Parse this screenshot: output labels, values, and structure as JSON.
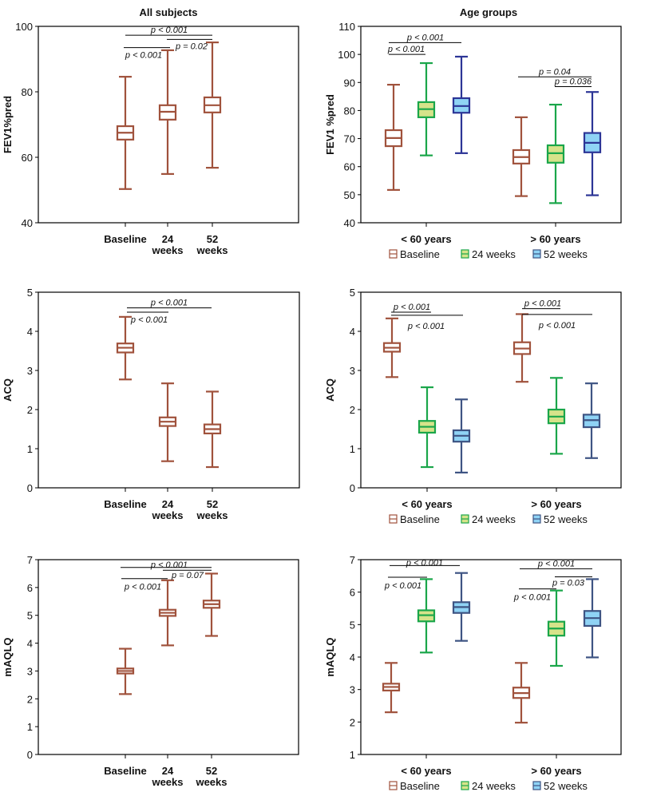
{
  "chart_data": [
    {
      "id": "fev1-all",
      "type": "boxplot",
      "title": "All subjects",
      "ylabel": "FEV1%pred",
      "ylim": [
        40,
        100
      ],
      "yticks": [
        40,
        60,
        80,
        100
      ],
      "categories": [
        "Baseline",
        "24\nweeks",
        "52\nweeks"
      ],
      "groups": [
        {
          "label": "",
          "boxes": [
            {
              "series": "Baseline",
              "color": "brown",
              "min": 50.3,
              "q1": 65.4,
              "median": 67.5,
              "q3": 69.5,
              "max": 84.6
            },
            {
              "series": "24 weeks",
              "color": "brown",
              "min": 54.9,
              "q1": 71.5,
              "median": 73.9,
              "q3": 75.9,
              "max": 92.7
            },
            {
              "series": "52 weeks",
              "color": "brown",
              "min": 56.8,
              "q1": 73.7,
              "median": 75.9,
              "q3": 78.3,
              "max": 95.1
            }
          ]
        }
      ],
      "annotations": [
        {
          "from": 0,
          "to": 2,
          "label": "p < 0.001"
        },
        {
          "from": 0,
          "to": 1,
          "label": "p < 0.001"
        },
        {
          "from": 1,
          "to": 2,
          "label": "p = 0.02"
        }
      ]
    },
    {
      "id": "fev1-age",
      "type": "boxplot",
      "title": "Age groups",
      "ylabel": "FEV1 %pred",
      "ylim": [
        40,
        110
      ],
      "yticks": [
        40,
        50,
        60,
        70,
        80,
        90,
        100,
        110
      ],
      "categories": [
        "< 60 years",
        "> 60 years"
      ],
      "groups": [
        {
          "label": "< 60 years",
          "boxes": [
            {
              "series": "Baseline",
              "color": "brown",
              "min": 51.7,
              "q1": 67.3,
              "median": 70.2,
              "q3": 73.0,
              "max": 89.2
            },
            {
              "series": "24 weeks",
              "color": "green",
              "min": 64.0,
              "q1": 77.6,
              "median": 80.5,
              "q3": 83.0,
              "max": 96.9
            },
            {
              "series": "52 weeks",
              "color": "navy",
              "min": 64.8,
              "q1": 79.2,
              "median": 81.6,
              "q3": 84.4,
              "max": 99.2
            }
          ]
        },
        {
          "label": "> 60 years",
          "boxes": [
            {
              "series": "Baseline",
              "color": "brown",
              "min": 49.5,
              "q1": 61.1,
              "median": 63.4,
              "q3": 65.9,
              "max": 77.6
            },
            {
              "series": "24 weeks",
              "color": "green",
              "min": 47.0,
              "q1": 61.4,
              "median": 64.8,
              "q3": 67.6,
              "max": 82.1
            },
            {
              "series": "52 weeks",
              "color": "navy",
              "min": 49.8,
              "q1": 65.1,
              "median": 68.5,
              "q3": 72.0,
              "max": 86.6
            }
          ]
        }
      ],
      "annotations": [
        {
          "group": 0,
          "from": 0,
          "to": 2,
          "label": "p < 0.001"
        },
        {
          "group": 0,
          "from": 0,
          "to": 1,
          "label": "p < 0.001"
        },
        {
          "group": 1,
          "from": 0,
          "to": 2,
          "label": "p = 0.04"
        },
        {
          "group": 1,
          "from": 1,
          "to": 2,
          "label": "p = 0.036"
        }
      ],
      "legend": [
        "Baseline",
        "24 weeks",
        "52 weeks"
      ]
    },
    {
      "id": "acq-all",
      "type": "boxplot",
      "title": "",
      "ylabel": "ACQ",
      "ylim": [
        0,
        5
      ],
      "yticks": [
        0,
        1,
        2,
        3,
        4,
        5
      ],
      "categories": [
        "Baseline",
        "24\nweeks",
        "52\nweeks"
      ],
      "groups": [
        {
          "label": "",
          "boxes": [
            {
              "series": "Baseline",
              "color": "brown",
              "min": 2.77,
              "q1": 3.46,
              "median": 3.58,
              "q3": 3.69,
              "max": 4.37
            },
            {
              "series": "24 weeks",
              "color": "brown",
              "min": 0.68,
              "q1": 1.58,
              "median": 1.69,
              "q3": 1.8,
              "max": 2.67
            },
            {
              "series": "52 weeks",
              "color": "brown",
              "min": 0.53,
              "q1": 1.39,
              "median": 1.5,
              "q3": 1.62,
              "max": 2.46
            }
          ]
        }
      ],
      "annotations": [
        {
          "from": 0,
          "to": 2,
          "label": "p < 0.001"
        },
        {
          "from": 0,
          "to": 1,
          "label": "p < 0.001"
        }
      ]
    },
    {
      "id": "acq-age",
      "type": "boxplot",
      "title": "",
      "ylabel": "ACQ",
      "ylim": [
        0,
        5
      ],
      "yticks": [
        0,
        1,
        2,
        3,
        4,
        5
      ],
      "categories": [
        "< 60 years",
        "> 60 years"
      ],
      "groups": [
        {
          "label": "< 60 years",
          "boxes": [
            {
              "series": "Baseline",
              "color": "brown",
              "min": 2.83,
              "q1": 3.48,
              "median": 3.58,
              "q3": 3.7,
              "max": 4.33
            },
            {
              "series": "24 weeks",
              "color": "green",
              "min": 0.53,
              "q1": 1.41,
              "median": 1.56,
              "q3": 1.71,
              "max": 2.57
            },
            {
              "series": "52 weeks",
              "color": "slate",
              "min": 0.39,
              "q1": 1.18,
              "median": 1.33,
              "q3": 1.47,
              "max": 2.26
            }
          ]
        },
        {
          "label": "> 60 years",
          "boxes": [
            {
              "series": "Baseline",
              "color": "brown",
              "min": 2.71,
              "q1": 3.42,
              "median": 3.56,
              "q3": 3.72,
              "max": 4.44
            },
            {
              "series": "24 weeks",
              "color": "green",
              "min": 0.87,
              "q1": 1.65,
              "median": 1.82,
              "q3": 2.0,
              "max": 2.81
            },
            {
              "series": "52 weeks",
              "color": "slate",
              "min": 0.76,
              "q1": 1.55,
              "median": 1.73,
              "q3": 1.87,
              "max": 2.67
            }
          ]
        }
      ],
      "annotations": [
        {
          "group": 0,
          "from": 0,
          "to": 1,
          "label": "p < 0.001"
        },
        {
          "group": 0,
          "from": 0,
          "to": 2,
          "label": "p < 0.001"
        },
        {
          "group": 1,
          "from": 0,
          "to": 1,
          "label": "p < 0.001"
        },
        {
          "group": 1,
          "from": 0,
          "to": 2,
          "label": "p < 0.001"
        }
      ],
      "legend": [
        "Baseline",
        "24 weeks",
        "52 weeks"
      ]
    },
    {
      "id": "maqlq-all",
      "type": "boxplot",
      "title": "",
      "ylabel": "mAQLQ",
      "ylim": [
        0,
        7
      ],
      "yticks": [
        0,
        1,
        2,
        3,
        4,
        5,
        6,
        7
      ],
      "categories": [
        "Baseline",
        "24\nweeks",
        "52\nweeks"
      ],
      "groups": [
        {
          "label": "",
          "boxes": [
            {
              "series": "Baseline",
              "color": "brown",
              "min": 2.17,
              "q1": 2.91,
              "median": 3.0,
              "q3": 3.09,
              "max": 3.8
            },
            {
              "series": "24 weeks",
              "color": "brown",
              "min": 3.92,
              "q1": 4.98,
              "median": 5.09,
              "q3": 5.2,
              "max": 6.26
            },
            {
              "series": "52 weeks",
              "color": "brown",
              "min": 4.26,
              "q1": 5.27,
              "median": 5.4,
              "q3": 5.53,
              "max": 6.5
            }
          ]
        }
      ],
      "annotations": [
        {
          "from": 0,
          "to": 2,
          "label": "p < 0.001"
        },
        {
          "from": 0,
          "to": 1,
          "label": "p < 0.001"
        },
        {
          "from": 1,
          "to": 2,
          "label": "p = 0.07"
        }
      ]
    },
    {
      "id": "maqlq-age",
      "type": "boxplot",
      "title": "",
      "ylabel": "mAQLQ",
      "ylim": [
        1,
        7
      ],
      "yticks": [
        1,
        2,
        3,
        4,
        5,
        6,
        7
      ],
      "categories": [
        "< 60 years",
        "> 60 years"
      ],
      "groups": [
        {
          "label": "< 60 years",
          "boxes": [
            {
              "series": "Baseline",
              "color": "brown",
              "min": 2.3,
              "q1": 2.97,
              "median": 3.08,
              "q3": 3.18,
              "max": 3.82
            },
            {
              "series": "24 weeks",
              "color": "green",
              "min": 4.14,
              "q1": 5.1,
              "median": 5.29,
              "q3": 5.44,
              "max": 6.4
            },
            {
              "series": "52 weeks",
              "color": "slate",
              "min": 4.5,
              "q1": 5.36,
              "median": 5.54,
              "q3": 5.69,
              "max": 6.59
            }
          ]
        },
        {
          "label": "> 60 years",
          "boxes": [
            {
              "series": "Baseline",
              "color": "brown",
              "min": 1.98,
              "q1": 2.74,
              "median": 2.89,
              "q3": 3.06,
              "max": 3.82
            },
            {
              "series": "24 weeks",
              "color": "green",
              "min": 3.73,
              "q1": 4.66,
              "median": 4.88,
              "q3": 5.09,
              "max": 6.05
            },
            {
              "series": "52 weeks",
              "color": "slate",
              "min": 3.99,
              "q1": 4.96,
              "median": 5.2,
              "q3": 5.42,
              "max": 6.4
            }
          ]
        }
      ],
      "annotations": [
        {
          "group": 0,
          "from": 0,
          "to": 2,
          "label": "p < 0.001"
        },
        {
          "group": 0,
          "from": 0,
          "to": 1,
          "label": "p < 0.001"
        },
        {
          "group": 1,
          "from": 0,
          "to": 2,
          "label": "p < 0.001"
        },
        {
          "group": 1,
          "from": 1,
          "to": 2,
          "label": "p = 0.03"
        },
        {
          "group": 1,
          "from": 0,
          "to": 1,
          "label": "p < 0.001"
        }
      ],
      "legend": [
        "Baseline",
        "24 weeks",
        "52 weeks"
      ]
    }
  ],
  "palette": {
    "brown": {
      "stroke": "#a0523c",
      "fill": "#ffffff"
    },
    "green": {
      "stroke": "#1aa64a",
      "fill": "#d6e38a"
    },
    "navy": {
      "stroke": "#2c3596",
      "fill": "#8fd3f5"
    },
    "slate": {
      "stroke": "#3e5483",
      "fill": "#8fd3f5"
    }
  },
  "legend_colors": [
    "brown",
    "green",
    "slate"
  ]
}
